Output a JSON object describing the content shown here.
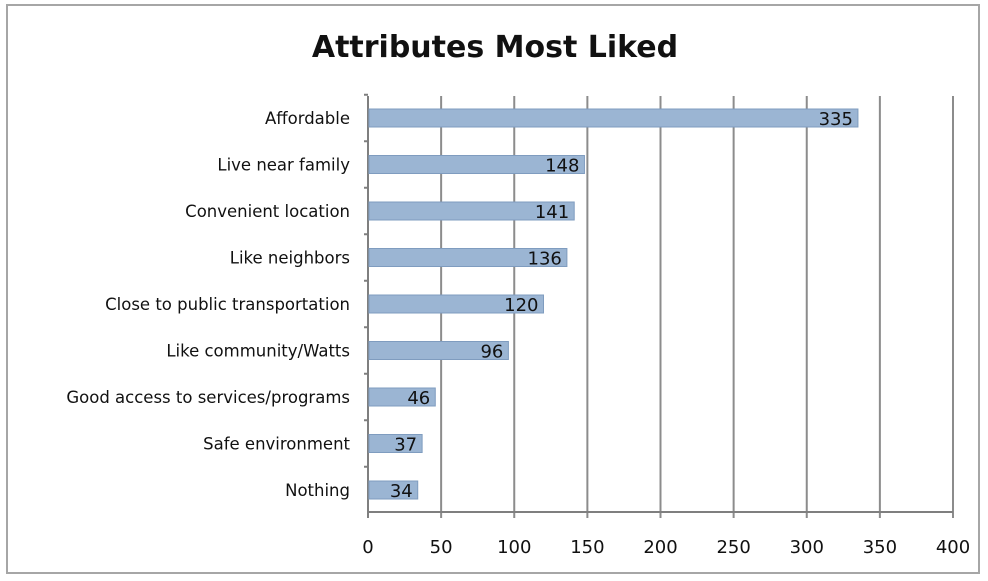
{
  "chart_data": {
    "type": "bar",
    "orientation": "horizontal",
    "title": "Attributes Most Liked",
    "xlabel": "",
    "ylabel": "",
    "categories": [
      "Affordable",
      "Live near family",
      "Convenient location",
      "Like neighbors",
      "Close to public transportation",
      "Like community/Watts",
      "Good access to services/programs",
      "Safe environment",
      "Nothing"
    ],
    "values": [
      335,
      148,
      141,
      136,
      120,
      96,
      46,
      37,
      34
    ],
    "xlim": [
      0,
      400
    ],
    "xticks": [
      0,
      50,
      100,
      150,
      200,
      250,
      300,
      350,
      400
    ],
    "grid": "vertical",
    "data_labels": true,
    "legend": "none"
  },
  "colors": {
    "bar_fill": "#9bb5d3",
    "bar_stroke": "#7f9cbf",
    "gridline": "#8c8c8c",
    "frame_border": "#a6a6a6",
    "text": "#111111"
  }
}
